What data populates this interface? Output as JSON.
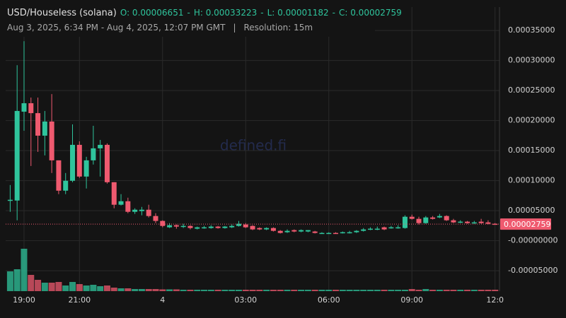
{
  "chart_data": {
    "type": "candlestick",
    "title": "USD/Houseless (solana)",
    "ohlc": [
      {
        "value": 6.651e-05,
        "label": "O: 0.00006651"
      },
      {
        "value": 0.00033223,
        "label": "H: 0.00033223"
      },
      {
        "value": 1.182e-05,
        "label": "L: 0.00001182"
      },
      {
        "value": 2.759e-05,
        "label": "C: 0.00002759"
      }
    ],
    "ohlc_separator": "-",
    "range": "Aug 3, 2025, 6:34 PM - Aug 4, 2025, 12:07 PM GMT",
    "range_separator": "|",
    "resolution": "Resolution: 15m",
    "watermark": "defined.fi",
    "categories": [
      null,
      null,
      "19:00",
      null,
      null,
      null,
      null,
      null,
      null,
      null,
      "21:00",
      null,
      null,
      null,
      null,
      null,
      null,
      null,
      null,
      null,
      null,
      null,
      "4",
      null,
      null,
      null,
      null,
      null,
      null,
      null,
      null,
      null,
      null,
      null,
      "03:00",
      null,
      null,
      null,
      null,
      null,
      null,
      null,
      null,
      null,
      null,
      null,
      "06:00",
      null,
      null,
      null,
      null,
      null,
      null,
      null,
      null,
      null,
      null,
      null,
      "09:00",
      null,
      null,
      null,
      null,
      null,
      null,
      null,
      null,
      null,
      null,
      null,
      "12:0"
    ],
    "open": [
      6.651e-05,
      6.69e-05,
      0.0002148,
      0.0002289,
      0.0002124,
      0.0001749,
      0.0001984,
      0.0001338,
      8.33e-05,
      9.98e-05,
      0.0001596,
      0.0001068,
      0.0001338,
      0.0001538,
      0.0001596,
      9.74e-05,
      5.99e-05,
      6.57e-05,
      4.81e-05,
      4.93e-05,
      5.16e-05,
      4.11e-05,
      3.29e-05,
      2.23e-05,
      2.58e-05,
      2.35e-05,
      2.46e-05,
      2e-05,
      2.11e-05,
      2.11e-05,
      2.35e-05,
      2.11e-05,
      2.23e-05,
      2.46e-05,
      2.7e-05,
      2.46e-05,
      2.11e-05,
      1.88e-05,
      2.11e-05,
      1.64e-05,
      1.41e-05,
      1.76e-05,
      1.53e-05,
      1.53e-05,
      1.53e-05,
      1.17e-05,
      1.17e-05,
      1.29e-05,
      1.29e-05,
      1.29e-05,
      1.41e-05,
      1.64e-05,
      1.88e-05,
      1.88e-05,
      2.23e-05,
      2.11e-05,
      2.11e-05,
      2.11e-05,
      3.99e-05,
      3.64e-05,
      2.93e-05,
      3.87e-05,
      3.87e-05,
      4.11e-05,
      3.4e-05,
      3.05e-05,
      3.17e-05,
      2.93e-05,
      3.17e-05,
      3.05e-05,
      2.82e-05
    ],
    "high": [
      9.27e-05,
      0.0002922,
      0.00033223,
      0.0002383,
      0.0002383,
      0.000216,
      0.0002441,
      0.0001338,
      0.0001127,
      0.0001937,
      0.0001655,
      0.0001397,
      0.0001913,
      0.0001678,
      0.000162,
      9.74e-05,
      7.75e-05,
      7.16e-05,
      5.4e-05,
      5.63e-05,
      5.99e-05,
      4.58e-05,
      3.4e-05,
      2.93e-05,
      2.7e-05,
      2.82e-05,
      2.58e-05,
      2.35e-05,
      2.46e-05,
      2.58e-05,
      2.46e-05,
      2.46e-05,
      2.7e-05,
      3.29e-05,
      2.93e-05,
      2.58e-05,
      2.23e-05,
      2.23e-05,
      2.23e-05,
      1.76e-05,
      1.88e-05,
      1.88e-05,
      1.88e-05,
      1.76e-05,
      1.64e-05,
      1.41e-05,
      1.41e-05,
      1.41e-05,
      1.53e-05,
      1.64e-05,
      1.76e-05,
      2.11e-05,
      2.23e-05,
      2.35e-05,
      2.35e-05,
      2.46e-05,
      2.58e-05,
      4.23e-05,
      4.34e-05,
      3.99e-05,
      4.11e-05,
      4.11e-05,
      4.46e-05,
      4.23e-05,
      3.64e-05,
      3.4e-05,
      3.29e-05,
      3.29e-05,
      3.64e-05,
      3.4e-05,
      2.93e-05
    ],
    "low": [
      4.81e-05,
      3.4e-05,
      0.0001831,
      0.0001244,
      0.0001479,
      0.000142,
      0.0001127,
      7.75e-05,
      7.75e-05,
      9.74e-05,
      0.0001045,
      8.69e-05,
      0.0001268,
      0.0001068,
      9.51e-05,
      5.4e-05,
      5.87e-05,
      4.58e-05,
      4.46e-05,
      4.23e-05,
      3.87e-05,
      2.93e-05,
      2.23e-05,
      2.11e-05,
      2e-05,
      2.11e-05,
      1.88e-05,
      1.88e-05,
      2e-05,
      2e-05,
      2e-05,
      2e-05,
      2.11e-05,
      2.35e-05,
      2.11e-05,
      1.76e-05,
      1.76e-05,
      1.76e-05,
      1.53e-05,
      1.2e-05,
      1.29e-05,
      1.41e-05,
      1.41e-05,
      1.41e-05,
      1.2e-05,
      1.19e-05,
      1.182e-05,
      1.19e-05,
      1.2e-05,
      1.2e-05,
      1.29e-05,
      1.53e-05,
      1.76e-05,
      1.76e-05,
      1.76e-05,
      2e-05,
      2e-05,
      2e-05,
      3.52e-05,
      2.7e-05,
      2.82e-05,
      3.52e-05,
      3.76e-05,
      3.29e-05,
      2.93e-05,
      2.93e-05,
      2.82e-05,
      2.82e-05,
      2.82e-05,
      2.7e-05,
      2.7e-05
    ],
    "close": [
      6.81e-05,
      0.000216,
      0.0002289,
      0.0002124,
      0.0001749,
      0.0001984,
      0.0001338,
      8.33e-05,
      9.98e-05,
      0.0001596,
      0.0001068,
      0.0001338,
      0.0001538,
      0.0001596,
      9.74e-05,
      5.99e-05,
      6.57e-05,
      4.81e-05,
      5.16e-05,
      5.16e-05,
      4.11e-05,
      3.29e-05,
      2.46e-05,
      2.58e-05,
      2.35e-05,
      2.46e-05,
      2.11e-05,
      2.23e-05,
      2.23e-05,
      2.35e-05,
      2.11e-05,
      2.35e-05,
      2.46e-05,
      2.82e-05,
      2.23e-05,
      1.88e-05,
      1.88e-05,
      2.11e-05,
      1.64e-05,
      1.29e-05,
      1.64e-05,
      1.53e-05,
      1.76e-05,
      1.76e-05,
      1.29e-05,
      1.29e-05,
      1.29e-05,
      1.2e-05,
      1.41e-05,
      1.41e-05,
      1.64e-05,
      1.88e-05,
      2e-05,
      2e-05,
      1.88e-05,
      2.23e-05,
      2.23e-05,
      3.99e-05,
      3.64e-05,
      2.93e-05,
      3.87e-05,
      3.64e-05,
      4.11e-05,
      3.4e-05,
      3.05e-05,
      3.17e-05,
      2.93e-05,
      3.05e-05,
      2.93e-05,
      2.82e-05,
      2.759e-05
    ],
    "volume": [
      28,
      31,
      60,
      23,
      16,
      12,
      12,
      13,
      8,
      13,
      10,
      8,
      9,
      7,
      8,
      5,
      4,
      4,
      3,
      3,
      3,
      3,
      2.5,
      2.5,
      2.5,
      2,
      2,
      2,
      2,
      2,
      2,
      2,
      2,
      2,
      2,
      2,
      2,
      2,
      2,
      2,
      2,
      2,
      2,
      2,
      2,
      2,
      2,
      2,
      2,
      2,
      2,
      2,
      2,
      2,
      2,
      2,
      2,
      2,
      3,
      2,
      3,
      2,
      2,
      2,
      2,
      2,
      2,
      2,
      2,
      2,
      2
    ],
    "up_color": "#2fc49c",
    "down_color": "#ef5a6f",
    "ylim": [
      -8.4e-05,
      0.000389
    ],
    "yticks": [
      {
        "value": 0.00035,
        "label": "0.00035000"
      },
      {
        "value": 0.0003,
        "label": "0.00030000"
      },
      {
        "value": 0.00025,
        "label": "0.00025000"
      },
      {
        "value": 0.0002,
        "label": "0.00020000"
      },
      {
        "value": 0.00015,
        "label": "0.00015000"
      },
      {
        "value": 0.0001,
        "label": "0.00010000"
      },
      {
        "value": 5e-05,
        "label": "0.00005000"
      },
      {
        "value": 0,
        "label": "-0.00000000"
      },
      {
        "value": -5e-05,
        "label": "-0.00005000"
      }
    ],
    "grid": true,
    "last_price": {
      "value": 2.759e-05,
      "label": "0.00002759"
    }
  }
}
